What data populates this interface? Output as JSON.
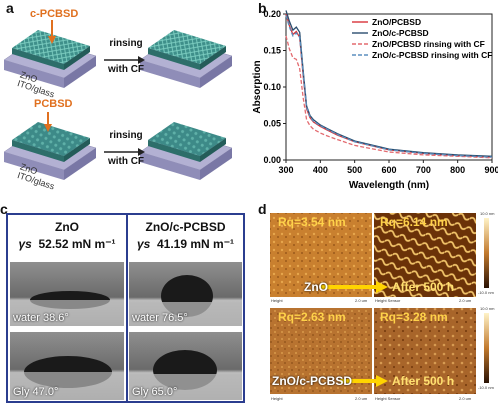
{
  "panel_a": {
    "label": "a",
    "top_material": "c-PCBSD",
    "bottom_material": "PCBSD",
    "substrate_label": "ZnO\nITO/glass",
    "substrate_zno": "ZnO",
    "substrate_ito": "ITO/glass",
    "rinse_line1": "rinsing",
    "rinse_line2": "with CF",
    "colors": {
      "film": "#3e8f8a",
      "substrate": "#a6a4c9",
      "arrow": "#e0701f"
    }
  },
  "panel_b": {
    "label": "b",
    "chart_data": {
      "type": "line",
      "xlabel": "Wavelength (nm)",
      "ylabel": "Absorption",
      "xlim": [
        300,
        900
      ],
      "ylim": [
        0.0,
        0.2
      ],
      "xticks": [
        "300",
        "400",
        "500",
        "600",
        "700",
        "800",
        "900"
      ],
      "yticks": [
        "0.00",
        "0.05",
        "0.10",
        "0.15",
        "0.20"
      ],
      "legend_position": "top-right",
      "series": [
        {
          "name": "ZnO/PCBSD",
          "color": "#d9343a",
          "dash": "solid",
          "x": [
            300,
            310,
            320,
            330,
            340,
            350,
            360,
            370,
            380,
            400,
            420,
            450,
            500,
            600,
            700,
            800,
            900
          ],
          "y": [
            0.2,
            0.184,
            0.172,
            0.176,
            0.168,
            0.115,
            0.07,
            0.058,
            0.052,
            0.046,
            0.041,
            0.034,
            0.025,
            0.014,
            0.009,
            0.006,
            0.004
          ]
        },
        {
          "name": "ZnO/c-PCBSD",
          "color": "#2a4d6e",
          "dash": "solid",
          "x": [
            300,
            310,
            320,
            330,
            340,
            350,
            360,
            370,
            380,
            400,
            420,
            450,
            500,
            600,
            700,
            800,
            900
          ],
          "y": [
            0.205,
            0.19,
            0.178,
            0.182,
            0.175,
            0.122,
            0.074,
            0.061,
            0.055,
            0.048,
            0.043,
            0.036,
            0.026,
            0.015,
            0.01,
            0.007,
            0.005
          ]
        },
        {
          "name": "ZnO/PCBSD rinsing with CF",
          "color": "#e36a6f",
          "dash": "dashed",
          "x": [
            300,
            310,
            320,
            330,
            340,
            350,
            360,
            370,
            380,
            400,
            420,
            450,
            500,
            600,
            700,
            800,
            900
          ],
          "y": [
            0.17,
            0.152,
            0.14,
            0.138,
            0.125,
            0.085,
            0.055,
            0.047,
            0.042,
            0.037,
            0.033,
            0.028,
            0.02,
            0.011,
            0.007,
            0.005,
            0.003
          ]
        },
        {
          "name": "ZnO/c-PCBSD rinsing with CF",
          "color": "#5b8fbf",
          "dash": "dashed",
          "x": [
            300,
            310,
            320,
            330,
            340,
            350,
            360,
            370,
            380,
            400,
            420,
            450,
            500,
            600,
            700,
            800,
            900
          ],
          "y": [
            0.198,
            0.182,
            0.17,
            0.174,
            0.168,
            0.118,
            0.072,
            0.059,
            0.053,
            0.047,
            0.042,
            0.035,
            0.025,
            0.014,
            0.009,
            0.006,
            0.004
          ]
        }
      ]
    }
  },
  "panel_c": {
    "label": "c",
    "left": {
      "title": "ZnO",
      "gamma_label": "γs",
      "gamma_value": "52.52 mN m⁻¹",
      "water": "water 38.6°",
      "gly": "Gly 47.0°"
    },
    "right": {
      "title": "ZnO/c-PCBSD",
      "gamma_label": "γs",
      "gamma_value": "41.19 mN m⁻¹",
      "water": "water 76.5°",
      "gly": "Gly 65.0°"
    },
    "frame_color": "#2b3d8f"
  },
  "panel_d": {
    "label": "d",
    "images": [
      {
        "rq": "Rq=3.54 nm",
        "center": "ZnO",
        "caption_left": "Height",
        "caption_right": "2.0 um"
      },
      {
        "rq": "Rq=6.14 nm",
        "center": "After 500 h",
        "caption_left": "Height Sensor",
        "caption_right": "2.0 um"
      },
      {
        "rq": "Rq=2.63 nm",
        "center": "ZnO/c-PCBSD",
        "caption_left": "Height",
        "caption_right": "2.0 um"
      },
      {
        "rq": "Rq=3.28 nm",
        "center": "After 500 h",
        "caption_left": "Height Sensor",
        "caption_right": "2.0 um"
      }
    ],
    "scale_top": "10.0 nm",
    "scale_bottom": "-10.0 nm",
    "arrow_color": "#ffd400"
  }
}
